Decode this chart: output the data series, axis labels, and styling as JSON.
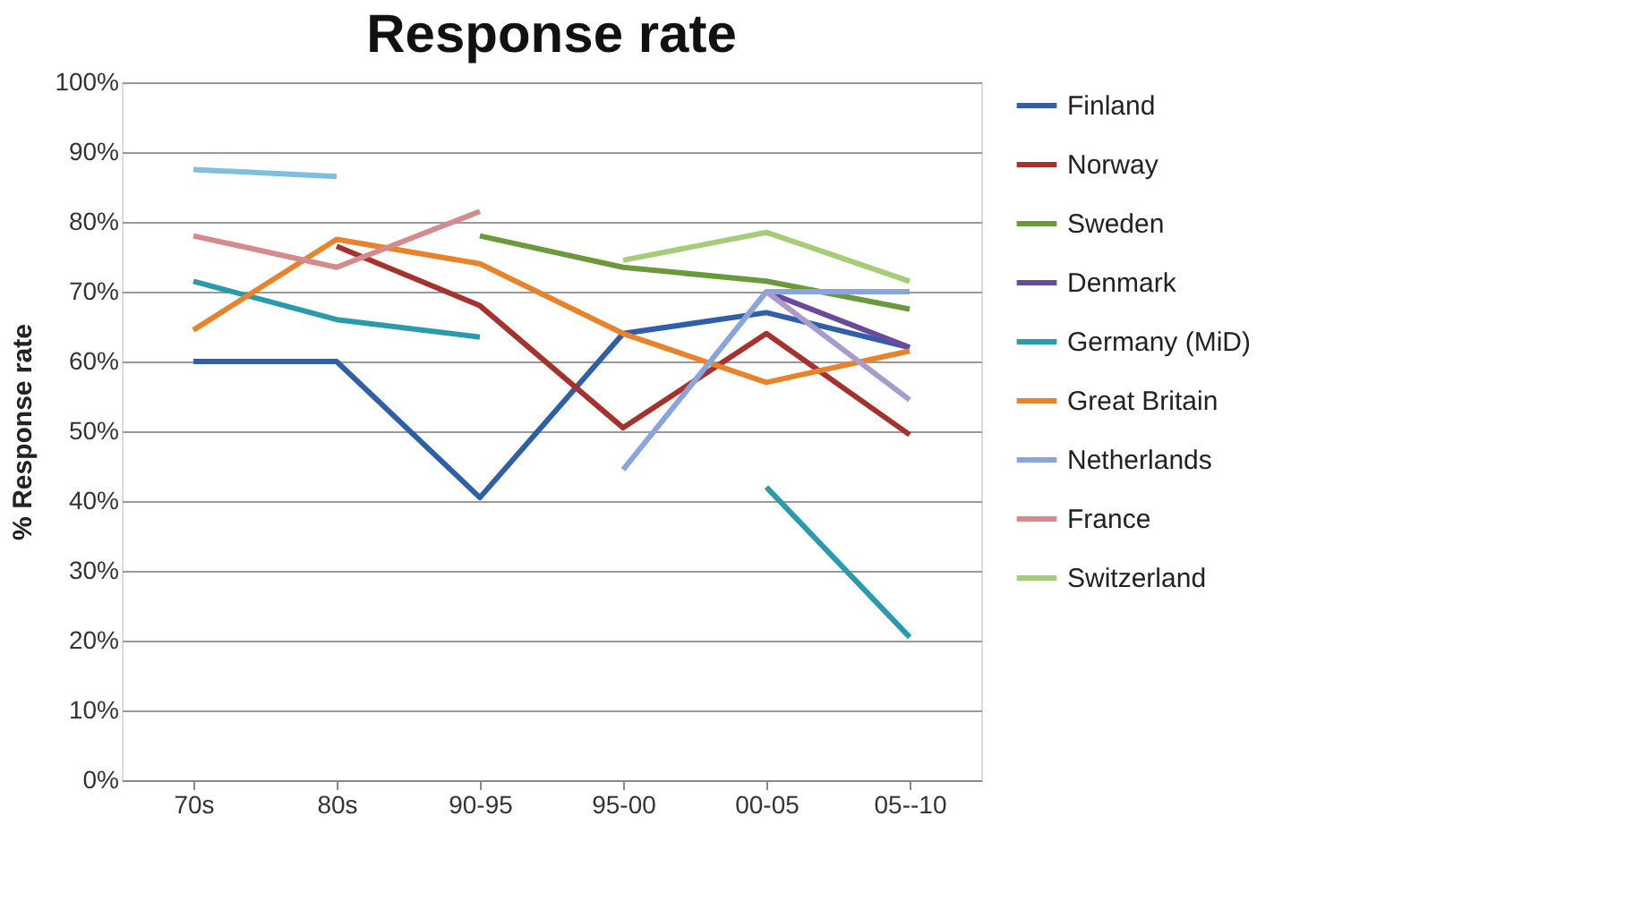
{
  "chart_data": {
    "type": "line",
    "title": "Response rate",
    "ylabel": "% Response rate",
    "categories": [
      "70s",
      "80s",
      "90-95",
      "95-00",
      "00-05",
      "05--10"
    ],
    "series": [
      {
        "name": "Finland",
        "color": "#2e5fa8",
        "values": [
          60,
          60,
          40.5,
          64,
          67,
          62
        ]
      },
      {
        "name": "Norway",
        "color": "#a6322e",
        "values": [
          null,
          76.5,
          68,
          50.5,
          64,
          49.5
        ]
      },
      {
        "name": "Sweden",
        "color": "#6a9a3a",
        "values": [
          null,
          null,
          78,
          73.5,
          71.5,
          67.5
        ]
      },
      {
        "name": "Denmark",
        "color": "#6a4a9a",
        "values": [
          null,
          null,
          null,
          null,
          70,
          62
        ]
      },
      {
        "name": "Germany (MiD)",
        "color": "#2a9aad",
        "values": [
          71.5,
          66,
          63.5,
          null,
          42,
          20.5
        ]
      },
      {
        "name": "Great Britain",
        "color": "#e8832a",
        "values": [
          64.5,
          77.5,
          74,
          64,
          57,
          61.5
        ]
      },
      {
        "name": "Netherlands",
        "color": "#8aa4dc",
        "values": [
          null,
          null,
          null,
          44.5,
          70,
          70
        ]
      },
      {
        "name": "France",
        "color": "#d58a8e",
        "values": [
          78,
          73.5,
          81.5,
          null,
          null,
          null
        ]
      },
      {
        "name": "Switzerland",
        "color": "#a6cc78",
        "values": [
          null,
          null,
          null,
          74.5,
          78.5,
          71.5
        ]
      },
      {
        "color": "#7cc0dc",
        "values": [
          87.5,
          86.5,
          null,
          null,
          null,
          null
        ]
      },
      {
        "color": "#a89ccc",
        "values": [
          null,
          null,
          null,
          null,
          70,
          54.5
        ]
      }
    ],
    "ylim": [
      0,
      100
    ],
    "yticks": [
      {
        "value": 0,
        "label": "0%"
      },
      {
        "value": 10,
        "label": "10%"
      },
      {
        "value": 20,
        "label": "20%"
      },
      {
        "value": 30,
        "label": "30%"
      },
      {
        "value": 40,
        "label": "40%"
      },
      {
        "value": 50,
        "label": "50%"
      },
      {
        "value": 60,
        "label": "60%"
      },
      {
        "value": 70,
        "label": "70%"
      },
      {
        "value": 80,
        "label": "80%"
      },
      {
        "value": 90,
        "label": "90%"
      },
      {
        "value": 100,
        "label": "100%"
      }
    ],
    "grid": "y",
    "legend": "right",
    "line_style": "solid",
    "marker": "none"
  }
}
